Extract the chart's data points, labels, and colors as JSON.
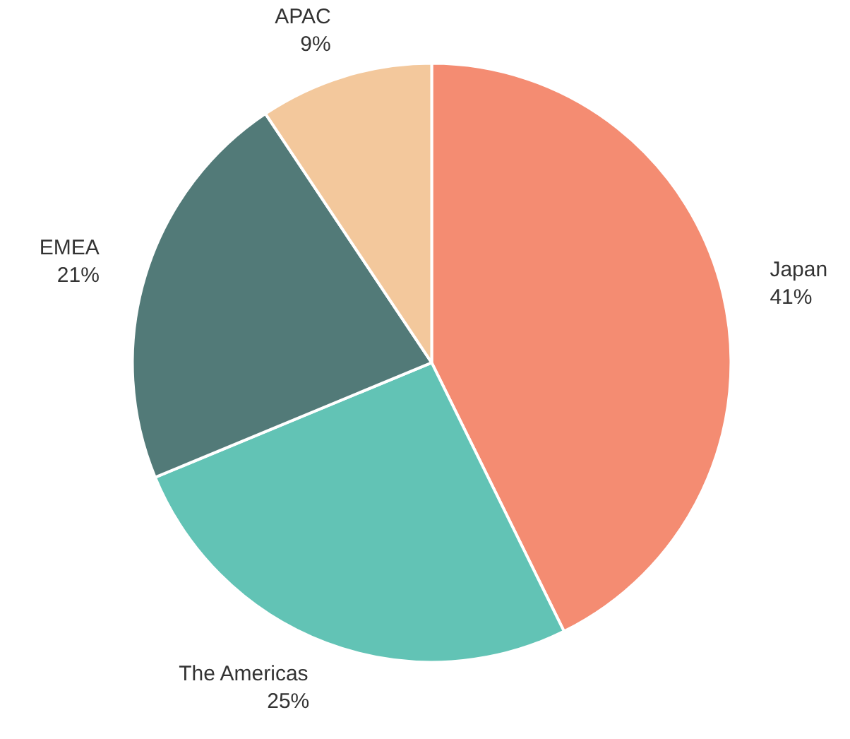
{
  "chart_data": {
    "type": "pie",
    "categories": [
      "Japan",
      "The Americas",
      "EMEA",
      "APAC"
    ],
    "values": [
      41,
      25,
      21,
      9
    ],
    "colors": [
      "#f48c72",
      "#62c3b5",
      "#527a78",
      "#f3c89c"
    ],
    "value_labels": [
      "41%",
      "25%",
      "21%",
      "9%"
    ],
    "legend": false
  }
}
